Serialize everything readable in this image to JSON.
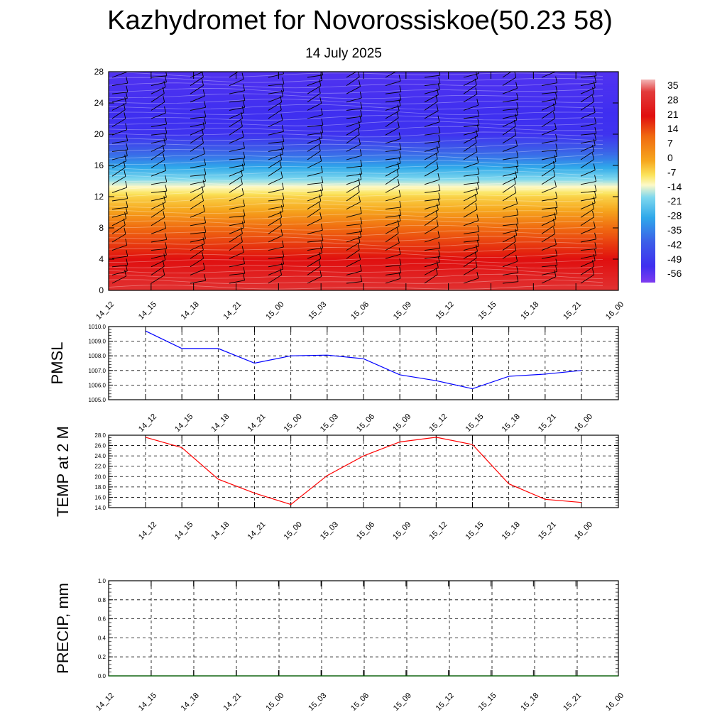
{
  "title": "Kazhydromet for Novorossiskoe(50.23 58)",
  "subtitle": "14 July 2025",
  "colors": {
    "pmsl_line": "#0000ff",
    "temp_line": "#ff0000",
    "precip_line": "#006400",
    "grid": "#000000"
  },
  "chart_data": [
    {
      "type": "heatmap",
      "name": "height-time temperature cross-section with wind barbs",
      "x": [
        "14_12",
        "14_15",
        "14_18",
        "14_21",
        "15_00",
        "15_03",
        "15_06",
        "15_09",
        "15_12",
        "15_15",
        "15_18",
        "15_21",
        "16_00"
      ],
      "y_ticks": [
        0,
        4,
        8,
        12,
        16,
        20,
        24,
        28
      ],
      "ylim": [
        0,
        28
      ],
      "colorbar_labels": [
        "35",
        "28",
        "21",
        "14",
        "7",
        "0",
        "-7",
        "-14",
        "-21",
        "-28",
        "-35",
        "-42",
        "-49",
        "-56"
      ],
      "colorbar_range": [
        -63,
        42
      ],
      "approx_profile": [
        {
          "y": 0,
          "value": 30
        },
        {
          "y": 4,
          "value": 22
        },
        {
          "y": 8,
          "value": 12
        },
        {
          "y": 12,
          "value": -5
        },
        {
          "y": 14,
          "value": -20
        },
        {
          "y": 17,
          "value": -40
        },
        {
          "y": 20,
          "value": -55
        },
        {
          "y": 28,
          "value": -58
        }
      ]
    },
    {
      "type": "line",
      "ylabel": "PMSL",
      "x": [
        "14_12",
        "14_15",
        "14_18",
        "14_21",
        "15_00",
        "15_03",
        "15_06",
        "15_09",
        "15_12",
        "15_15",
        "15_18",
        "15_21",
        "16_00"
      ],
      "y_ticks": [
        "1005.0",
        "1006.0",
        "1007.0",
        "1008.0",
        "1009.0",
        "1010.0"
      ],
      "ylim": [
        1005,
        1010
      ],
      "series": [
        {
          "values": [
            1009.7,
            1008.5,
            1008.5,
            1007.5,
            1008.0,
            1008.05,
            1007.8,
            1006.7,
            1006.3,
            1005.75,
            1006.6,
            1006.75,
            1007.0
          ]
        }
      ],
      "grid": true
    },
    {
      "type": "line",
      "ylabel": "TEMP at 2 M",
      "x": [
        "14_12",
        "14_15",
        "14_18",
        "14_21",
        "15_00",
        "15_03",
        "15_06",
        "15_09",
        "15_12",
        "15_15",
        "15_18",
        "15_21",
        "16_00"
      ],
      "y_ticks": [
        "14.0",
        "16.0",
        "18.0",
        "20.0",
        "22.0",
        "24.0",
        "26.0",
        "28.0"
      ],
      "ylim": [
        14,
        28
      ],
      "series": [
        {
          "values": [
            27.6,
            25.6,
            19.5,
            16.8,
            14.6,
            20.2,
            24.0,
            26.7,
            27.6,
            26.2,
            18.6,
            15.6,
            15.0
          ]
        }
      ],
      "grid": true
    },
    {
      "type": "line",
      "ylabel": "PRECIP, mm",
      "x": [
        "14_12",
        "14_15",
        "14_18",
        "14_21",
        "15_00",
        "15_03",
        "15_06",
        "15_09",
        "15_12",
        "15_15",
        "15_18",
        "15_21",
        "16_00"
      ],
      "y_ticks": [
        "0.0",
        "0.2",
        "0.4",
        "0.6",
        "0.8",
        "1.0"
      ],
      "ylim": [
        0,
        1
      ],
      "series": [
        {
          "values": [
            0,
            0,
            0,
            0,
            0,
            0,
            0,
            0,
            0,
            0,
            0,
            0,
            0
          ]
        }
      ],
      "grid": true
    }
  ]
}
